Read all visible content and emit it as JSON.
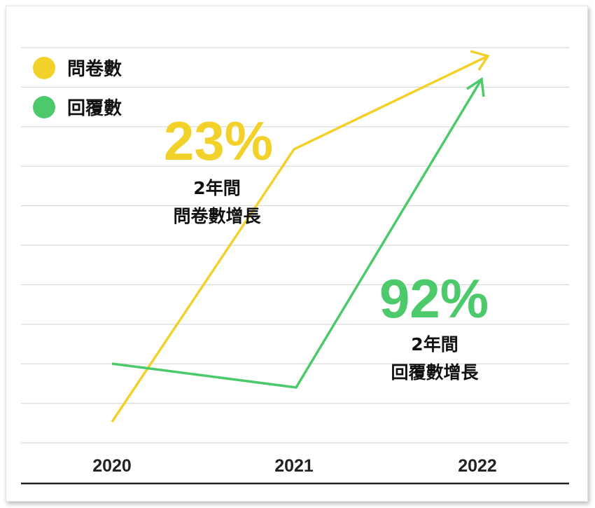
{
  "chart_data": {
    "type": "line",
    "x": [
      "2020",
      "2021",
      "2022"
    ],
    "series": [
      {
        "name": "問卷數",
        "color": "#f2d12a"
      },
      {
        "name": "回覆數",
        "color": "#4cc96b"
      }
    ],
    "annotations": [
      {
        "value": "23%",
        "line1": "2年間",
        "line2": "問卷數增長",
        "color": "#f2d12a"
      },
      {
        "value": "92%",
        "line1": "2年間",
        "line2": "回覆數增長",
        "color": "#4cc96b"
      }
    ],
    "grid": true,
    "legend": "top-left"
  }
}
